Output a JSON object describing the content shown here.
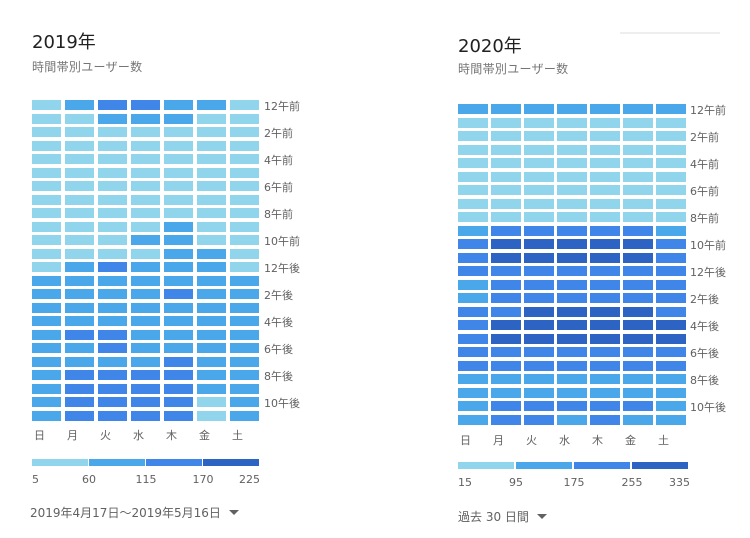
{
  "colors": {
    "light": "#90d5ec",
    "mid": "#4aa8ea",
    "strong": "#3f86e8",
    "dark": "#2d63c3"
  },
  "cards": [
    {
      "title": "2019年",
      "subtitle": "時間帯別ユーザー数",
      "footer_label": "2019年4月17日〜2019年5月16日",
      "footer_icon": "caret-down-icon",
      "chart_data": {
        "type": "heatmap",
        "title": "時間帯別ユーザー数",
        "x_categories": [
          "日",
          "月",
          "火",
          "水",
          "木",
          "金",
          "土"
        ],
        "y_labels": [
          "12午前",
          "2午前",
          "4午前",
          "6午前",
          "8午前",
          "10午前",
          "12午後",
          "2午後",
          "4午後",
          "6午後",
          "8午後",
          "10午後"
        ],
        "hours": 24,
        "scale_ticks": [
          5,
          60,
          115,
          170,
          225
        ],
        "matrix": [
          [
            1,
            2,
            3,
            3,
            2,
            2,
            1
          ],
          [
            1,
            1,
            2,
            2,
            2,
            1,
            1
          ],
          [
            1,
            1,
            1,
            1,
            1,
            1,
            1
          ],
          [
            1,
            1,
            1,
            1,
            1,
            1,
            1
          ],
          [
            1,
            1,
            1,
            1,
            1,
            1,
            1
          ],
          [
            1,
            1,
            1,
            1,
            1,
            1,
            1
          ],
          [
            1,
            1,
            1,
            1,
            1,
            1,
            1
          ],
          [
            1,
            1,
            1,
            1,
            1,
            1,
            1
          ],
          [
            1,
            1,
            1,
            1,
            1,
            1,
            1
          ],
          [
            1,
            1,
            1,
            1,
            2,
            1,
            1
          ],
          [
            1,
            1,
            1,
            2,
            2,
            1,
            1
          ],
          [
            1,
            1,
            1,
            1,
            2,
            2,
            1
          ],
          [
            1,
            2,
            3,
            2,
            2,
            2,
            1
          ],
          [
            2,
            2,
            2,
            2,
            2,
            2,
            2
          ],
          [
            2,
            2,
            2,
            2,
            3,
            2,
            2
          ],
          [
            2,
            2,
            2,
            2,
            2,
            2,
            2
          ],
          [
            2,
            2,
            2,
            2,
            2,
            2,
            2
          ],
          [
            2,
            3,
            3,
            2,
            2,
            2,
            2
          ],
          [
            2,
            2,
            3,
            2,
            2,
            2,
            2
          ],
          [
            2,
            2,
            2,
            2,
            3,
            2,
            2
          ],
          [
            2,
            3,
            3,
            3,
            3,
            2,
            2
          ],
          [
            2,
            3,
            3,
            3,
            3,
            2,
            2
          ],
          [
            2,
            3,
            3,
            3,
            3,
            1,
            2
          ],
          [
            2,
            3,
            3,
            3,
            3,
            1,
            2
          ]
        ]
      }
    },
    {
      "title": "2020年",
      "subtitle": "時間帯別ユーザー数",
      "footer_label": "過去 30 日間",
      "footer_icon": "caret-down-icon",
      "chart_data": {
        "type": "heatmap",
        "title": "時間帯別ユーザー数",
        "x_categories": [
          "日",
          "月",
          "火",
          "水",
          "木",
          "金",
          "土"
        ],
        "y_labels": [
          "12午前",
          "2午前",
          "4午前",
          "6午前",
          "8午前",
          "10午前",
          "12午後",
          "2午後",
          "4午後",
          "6午後",
          "8午後",
          "10午後"
        ],
        "hours": 24,
        "scale_ticks": [
          15,
          95,
          175,
          255,
          335
        ],
        "matrix": [
          [
            2,
            2,
            2,
            2,
            2,
            2,
            2
          ],
          [
            1,
            1,
            1,
            1,
            1,
            1,
            1
          ],
          [
            1,
            1,
            1,
            1,
            1,
            1,
            1
          ],
          [
            1,
            1,
            1,
            1,
            1,
            1,
            1
          ],
          [
            1,
            1,
            1,
            1,
            1,
            1,
            1
          ],
          [
            1,
            1,
            1,
            1,
            1,
            1,
            1
          ],
          [
            1,
            1,
            1,
            1,
            1,
            1,
            1
          ],
          [
            1,
            1,
            1,
            1,
            1,
            1,
            1
          ],
          [
            1,
            1,
            1,
            1,
            1,
            1,
            1
          ],
          [
            2,
            3,
            3,
            3,
            3,
            3,
            2
          ],
          [
            3,
            4,
            4,
            4,
            4,
            4,
            3
          ],
          [
            3,
            4,
            4,
            4,
            4,
            4,
            3
          ],
          [
            3,
            3,
            3,
            3,
            3,
            3,
            3
          ],
          [
            2,
            3,
            3,
            3,
            3,
            3,
            3
          ],
          [
            2,
            3,
            3,
            3,
            3,
            3,
            3
          ],
          [
            3,
            3,
            4,
            4,
            4,
            4,
            3
          ],
          [
            3,
            4,
            4,
            4,
            4,
            4,
            4
          ],
          [
            3,
            4,
            4,
            4,
            4,
            4,
            4
          ],
          [
            3,
            3,
            3,
            3,
            3,
            3,
            3
          ],
          [
            3,
            3,
            3,
            3,
            3,
            3,
            3
          ],
          [
            2,
            2,
            2,
            2,
            2,
            2,
            2
          ],
          [
            2,
            2,
            2,
            2,
            2,
            2,
            2
          ],
          [
            2,
            3,
            3,
            3,
            3,
            3,
            2
          ],
          [
            2,
            3,
            3,
            2,
            3,
            2,
            2
          ]
        ]
      }
    }
  ]
}
